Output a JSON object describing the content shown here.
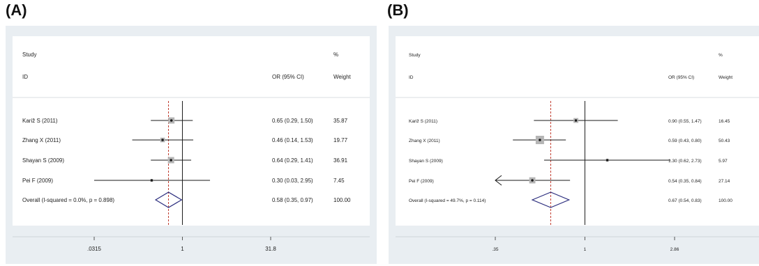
{
  "panels": [
    {
      "label": "(A)",
      "headers": {
        "study": "Study",
        "id": "ID",
        "or": "OR (95% CI)",
        "pct": "%",
        "weight": "Weight"
      },
      "ticks": [
        ".0315",
        "1",
        "31.8"
      ]
    },
    {
      "label": "(B)",
      "headers": {
        "study": "Study",
        "id": "ID",
        "or": "OR (95% CI)",
        "pct": "%",
        "weight": "Weight"
      },
      "ticks": [
        ".35",
        "1",
        "2.86"
      ]
    }
  ],
  "colors": {
    "background": "#e9eef2",
    "plot_bg": "#ffffff",
    "line": "#1a1a1a",
    "box": "#b5b5b5",
    "diamond": "#2d2f7f",
    "ref_line": "#c0392b"
  },
  "chart_data": [
    {
      "type": "forest",
      "x_scale": "log",
      "xlim": [
        0.0315,
        31.8
      ],
      "x_ticks": [
        0.0315,
        1,
        31.8
      ],
      "studies": [
        {
          "name": "Kariž S (2011)",
          "or": 0.65,
          "lo": 0.29,
          "hi": 1.5,
          "text": "0.65 (0.29, 1.50)",
          "weight": "35.87",
          "w": 35.87
        },
        {
          "name": "Zhang X (2011)",
          "or": 0.46,
          "lo": 0.14,
          "hi": 1.53,
          "text": "0.46 (0.14, 1.53)",
          "weight": "19.77",
          "w": 19.77
        },
        {
          "name": "Shayan S (2009)",
          "or": 0.64,
          "lo": 0.29,
          "hi": 1.41,
          "text": "0.64 (0.29, 1.41)",
          "weight": "36.91",
          "w": 36.91
        },
        {
          "name": "Pei F (2009)",
          "or": 0.3,
          "lo": 0.03,
          "hi": 2.95,
          "text": "0.30 (0.03, 2.95)",
          "weight": "7.45",
          "w": 7.45
        }
      ],
      "overall": {
        "name": "Overall  (I-squared = 0.0%, p = 0.898)",
        "or": 0.58,
        "lo": 0.35,
        "hi": 0.97,
        "text": "0.58 (0.35, 0.97)",
        "weight": "100.00"
      }
    },
    {
      "type": "forest",
      "x_scale": "log",
      "xlim": [
        0.35,
        2.86
      ],
      "x_ticks": [
        0.35,
        1,
        2.86
      ],
      "studies": [
        {
          "name": "Kariž S (2011)",
          "or": 0.9,
          "lo": 0.55,
          "hi": 1.47,
          "text": "0.90 (0.55, 1.47)",
          "weight": "16.45",
          "w": 16.45
        },
        {
          "name": "Zhang X (2011)",
          "or": 0.59,
          "lo": 0.43,
          "hi": 0.8,
          "text": "0.59 (0.43, 0.80)",
          "weight": "50.43",
          "w": 50.43
        },
        {
          "name": "Shayan S (2009)",
          "or": 1.3,
          "lo": 0.62,
          "hi": 2.73,
          "text": "1.30 (0.62, 2.73)",
          "weight": "5.97",
          "w": 5.97
        },
        {
          "name": "Pei F (2009)",
          "or": 0.54,
          "lo": 0.35,
          "hi": 0.84,
          "text": "0.54 (0.35, 0.84)",
          "weight": "27.14",
          "w": 27.14
        }
      ],
      "overall": {
        "name": "Overall  (I-squared = 49.7%, p = 0.114)",
        "or": 0.67,
        "lo": 0.54,
        "hi": 0.83,
        "text": "0.67 (0.54, 0.83)",
        "weight": "100.00"
      }
    }
  ]
}
